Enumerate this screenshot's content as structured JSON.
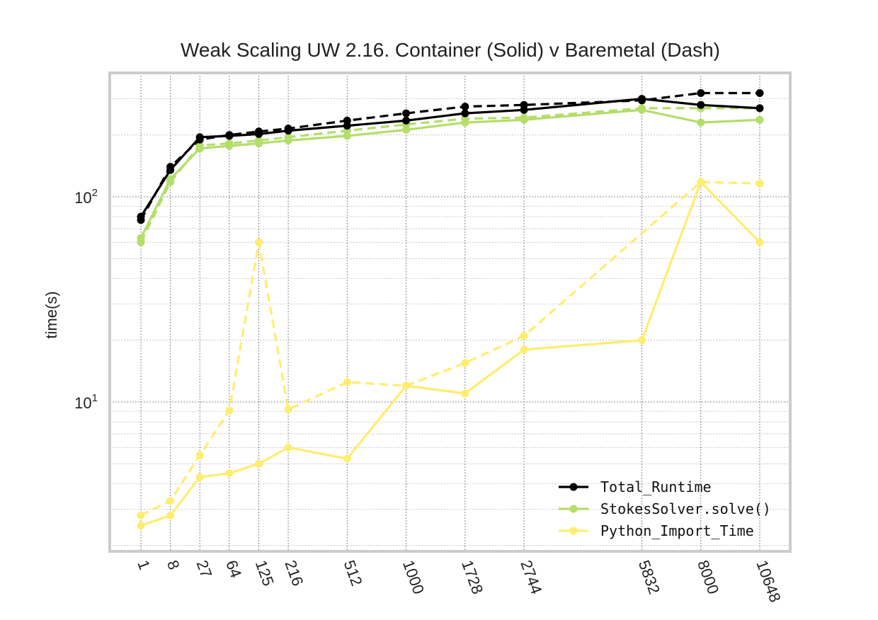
{
  "chart_data": {
    "type": "line",
    "title": "Weak Scaling UW 2.16. Container (Solid) v Baremetal (Dash)",
    "xlabel": "",
    "ylabel": "time(s)",
    "x_scale": "cube-root (categorical-like, values are cubes)",
    "y_scale": "log",
    "ylim": [
      2.2,
      420
    ],
    "grid": true,
    "legend_position": "lower-right",
    "x": [
      1,
      8,
      27,
      64,
      125,
      216,
      512,
      1000,
      1728,
      2744,
      5832,
      8000,
      10648
    ],
    "x_tick_labels": [
      "1",
      "8",
      "27",
      "64",
      "125",
      "216",
      "512",
      "1000",
      "1728",
      "2744",
      "5832",
      "8000",
      "10648"
    ],
    "y_ticks": [
      {
        "value": 10,
        "base": "10",
        "exp": "1"
      },
      {
        "value": 100,
        "base": "10",
        "exp": "2"
      }
    ],
    "series": [
      {
        "name": "Total_Runtime",
        "color": "#000000",
        "style": "solid",
        "values": [
          80,
          135,
          195,
          198,
          202,
          210,
          222,
          235,
          255,
          265,
          300,
          280,
          270
        ]
      },
      {
        "name": "Total_Runtime",
        "color": "#000000",
        "style": "dash",
        "values": [
          77,
          140,
          190,
          200,
          208,
          215,
          235,
          255,
          275,
          280,
          295,
          320,
          320
        ]
      },
      {
        "name": "StokesSolver.solve()",
        "color": "#b3de69",
        "style": "solid",
        "values": [
          63,
          122,
          172,
          177,
          182,
          188,
          198,
          212,
          230,
          237,
          265,
          230,
          237
        ]
      },
      {
        "name": "StokesSolver.solve()",
        "color": "#b3de69",
        "style": "dash",
        "values": [
          60,
          118,
          178,
          182,
          188,
          195,
          210,
          225,
          240,
          243,
          270,
          270,
          270
        ]
      },
      {
        "name": "Python_Import_Time",
        "color": "#ffed6f",
        "style": "solid",
        "values": [
          2.5,
          2.8,
          4.3,
          4.5,
          5.0,
          6.0,
          5.3,
          12.0,
          11.0,
          18.0,
          20.0,
          118,
          60
        ]
      },
      {
        "name": "Python_Import_Time",
        "color": "#ffed6f",
        "style": "dash",
        "values": [
          2.8,
          3.3,
          5.5,
          9.1,
          60,
          9.2,
          12.5,
          12.0,
          15.5,
          21,
          null,
          118,
          116
        ]
      }
    ],
    "legend": [
      {
        "label": "Total_Runtime",
        "color": "#000000"
      },
      {
        "label": "StokesSolver.solve()",
        "color": "#b3de69"
      },
      {
        "label": "Python_Import_Time",
        "color": "#ffed6f"
      }
    ]
  }
}
